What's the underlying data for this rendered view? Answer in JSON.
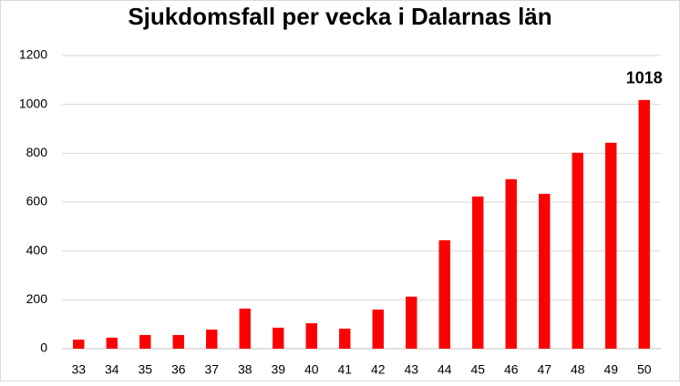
{
  "chart_data": {
    "type": "bar",
    "title": "Sjukdomsfall per vecka i Dalarnas län",
    "categories": [
      "33",
      "34",
      "35",
      "36",
      "37",
      "38",
      "39",
      "40",
      "41",
      "42",
      "43",
      "44",
      "45",
      "46",
      "47",
      "48",
      "49",
      "50"
    ],
    "values": [
      37,
      45,
      56,
      56,
      78,
      164,
      86,
      104,
      82,
      160,
      213,
      444,
      623,
      694,
      634,
      802,
      843,
      1018
    ],
    "color": "#ff0000",
    "ylim": [
      0,
      1200
    ],
    "yticks": [
      0,
      200,
      400,
      600,
      800,
      1000,
      1200
    ],
    "grid": true
  }
}
